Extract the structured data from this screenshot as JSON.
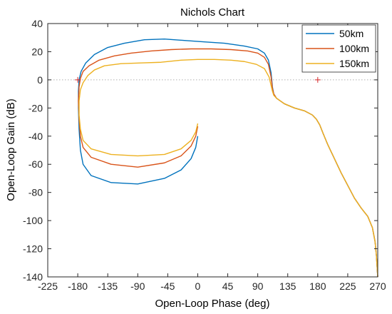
{
  "chart_data": {
    "type": "line",
    "title": "Nichols Chart",
    "xlabel": "Open-Loop Phase (deg)",
    "ylabel": "Open-Loop Gain (dB)",
    "xlim": [
      -225,
      270
    ],
    "ylim": [
      -140,
      40
    ],
    "xticks": [
      "-225",
      "-180",
      "-135",
      "-90",
      "-45",
      "0",
      "45",
      "90",
      "135",
      "180",
      "225",
      "270"
    ],
    "yticks": [
      "40",
      "20",
      "0",
      "-20",
      "-40",
      "-60",
      "-80",
      "-100",
      "-120",
      "-140"
    ],
    "legend_position": "top-right",
    "grid": false,
    "zero_line": true,
    "critical_points": [
      [
        -180,
        0
      ],
      [
        180,
        0
      ]
    ],
    "critical_marker_color": "#d62728",
    "series": [
      {
        "name": "50km",
        "color": "#0072BD",
        "points": [
          [
            0,
            -40
          ],
          [
            -3,
            -48
          ],
          [
            -10,
            -56
          ],
          [
            -25,
            -64
          ],
          [
            -50,
            -70
          ],
          [
            -90,
            -74
          ],
          [
            -130,
            -73
          ],
          [
            -160,
            -68
          ],
          [
            -172,
            -60
          ],
          [
            -176,
            -50
          ],
          [
            -178,
            -35
          ],
          [
            -179,
            -20
          ],
          [
            -179,
            -8
          ],
          [
            -178,
            0
          ],
          [
            -175,
            6
          ],
          [
            -168,
            12
          ],
          [
            -155,
            18
          ],
          [
            -135,
            23
          ],
          [
            -110,
            26
          ],
          [
            -80,
            28.5
          ],
          [
            -50,
            29
          ],
          [
            -20,
            28
          ],
          [
            10,
            27
          ],
          [
            40,
            26
          ],
          [
            70,
            24
          ],
          [
            90,
            22
          ],
          [
            100,
            19
          ],
          [
            106,
            14
          ],
          [
            110,
            5
          ],
          [
            112,
            -5
          ],
          [
            114,
            -10
          ],
          [
            118,
            -13
          ],
          [
            130,
            -17
          ],
          [
            145,
            -20
          ],
          [
            160,
            -22
          ],
          [
            172,
            -25
          ],
          [
            178,
            -28
          ],
          [
            183,
            -32
          ],
          [
            188,
            -38
          ],
          [
            195,
            -46
          ],
          [
            205,
            -56
          ],
          [
            215,
            -66
          ],
          [
            225,
            -75
          ],
          [
            235,
            -84
          ],
          [
            245,
            -91
          ],
          [
            255,
            -97
          ],
          [
            262,
            -105
          ],
          [
            266,
            -115
          ],
          [
            268,
            -125
          ],
          [
            270,
            -140
          ]
        ]
      },
      {
        "name": "100km",
        "color": "#D95319",
        "points": [
          [
            0,
            -33
          ],
          [
            -3,
            -40
          ],
          [
            -10,
            -47
          ],
          [
            -25,
            -54
          ],
          [
            -50,
            -59
          ],
          [
            -90,
            -62
          ],
          [
            -130,
            -60
          ],
          [
            -160,
            -55
          ],
          [
            -172,
            -48
          ],
          [
            -176,
            -40
          ],
          [
            -178,
            -28
          ],
          [
            -179,
            -15
          ],
          [
            -178,
            -5
          ],
          [
            -176,
            1
          ],
          [
            -172,
            6
          ],
          [
            -163,
            10
          ],
          [
            -148,
            14
          ],
          [
            -125,
            17
          ],
          [
            -100,
            19
          ],
          [
            -70,
            20.5
          ],
          [
            -40,
            21.5
          ],
          [
            -10,
            22
          ],
          [
            20,
            22
          ],
          [
            50,
            21.5
          ],
          [
            75,
            20.5
          ],
          [
            90,
            19
          ],
          [
            100,
            16
          ],
          [
            106,
            11
          ],
          [
            110,
            2
          ],
          [
            112,
            -6
          ],
          [
            114,
            -10
          ],
          [
            118,
            -13
          ],
          [
            130,
            -17
          ],
          [
            145,
            -20
          ],
          [
            160,
            -22
          ],
          [
            172,
            -25
          ],
          [
            178,
            -28
          ],
          [
            183,
            -32
          ],
          [
            188,
            -38
          ],
          [
            195,
            -46
          ],
          [
            205,
            -56
          ],
          [
            215,
            -66
          ],
          [
            225,
            -75
          ],
          [
            235,
            -84
          ],
          [
            245,
            -91
          ],
          [
            255,
            -97
          ],
          [
            262,
            -105
          ],
          [
            266,
            -115
          ],
          [
            268,
            -125
          ],
          [
            270,
            -140
          ]
        ]
      },
      {
        "name": "150km",
        "color": "#EDB120",
        "points": [
          [
            0,
            -31
          ],
          [
            -3,
            -37
          ],
          [
            -10,
            -43
          ],
          [
            -25,
            -49
          ],
          [
            -50,
            -53
          ],
          [
            -90,
            -54
          ],
          [
            -130,
            -53
          ],
          [
            -160,
            -49
          ],
          [
            -172,
            -43
          ],
          [
            -176,
            -35
          ],
          [
            -178,
            -25
          ],
          [
            -178,
            -15
          ],
          [
            -176,
            -7
          ],
          [
            -172,
            -2
          ],
          [
            -165,
            3
          ],
          [
            -155,
            7
          ],
          [
            -140,
            10
          ],
          [
            -115,
            11.5
          ],
          [
            -85,
            12
          ],
          [
            -55,
            12.5
          ],
          [
            -25,
            14
          ],
          [
            0,
            14.5
          ],
          [
            25,
            14.5
          ],
          [
            50,
            14
          ],
          [
            70,
            13
          ],
          [
            88,
            11
          ],
          [
            100,
            8
          ],
          [
            107,
            2
          ],
          [
            110,
            -4
          ],
          [
            112,
            -8
          ],
          [
            114,
            -11
          ],
          [
            118,
            -13
          ],
          [
            130,
            -17
          ],
          [
            145,
            -20
          ],
          [
            160,
            -22
          ],
          [
            172,
            -25
          ],
          [
            178,
            -28
          ],
          [
            183,
            -32
          ],
          [
            188,
            -38
          ],
          [
            195,
            -46
          ],
          [
            205,
            -56
          ],
          [
            215,
            -66
          ],
          [
            225,
            -75
          ],
          [
            235,
            -84
          ],
          [
            245,
            -91
          ],
          [
            255,
            -97
          ],
          [
            262,
            -105
          ],
          [
            266,
            -115
          ],
          [
            268,
            -125
          ],
          [
            270,
            -140
          ]
        ]
      }
    ]
  }
}
